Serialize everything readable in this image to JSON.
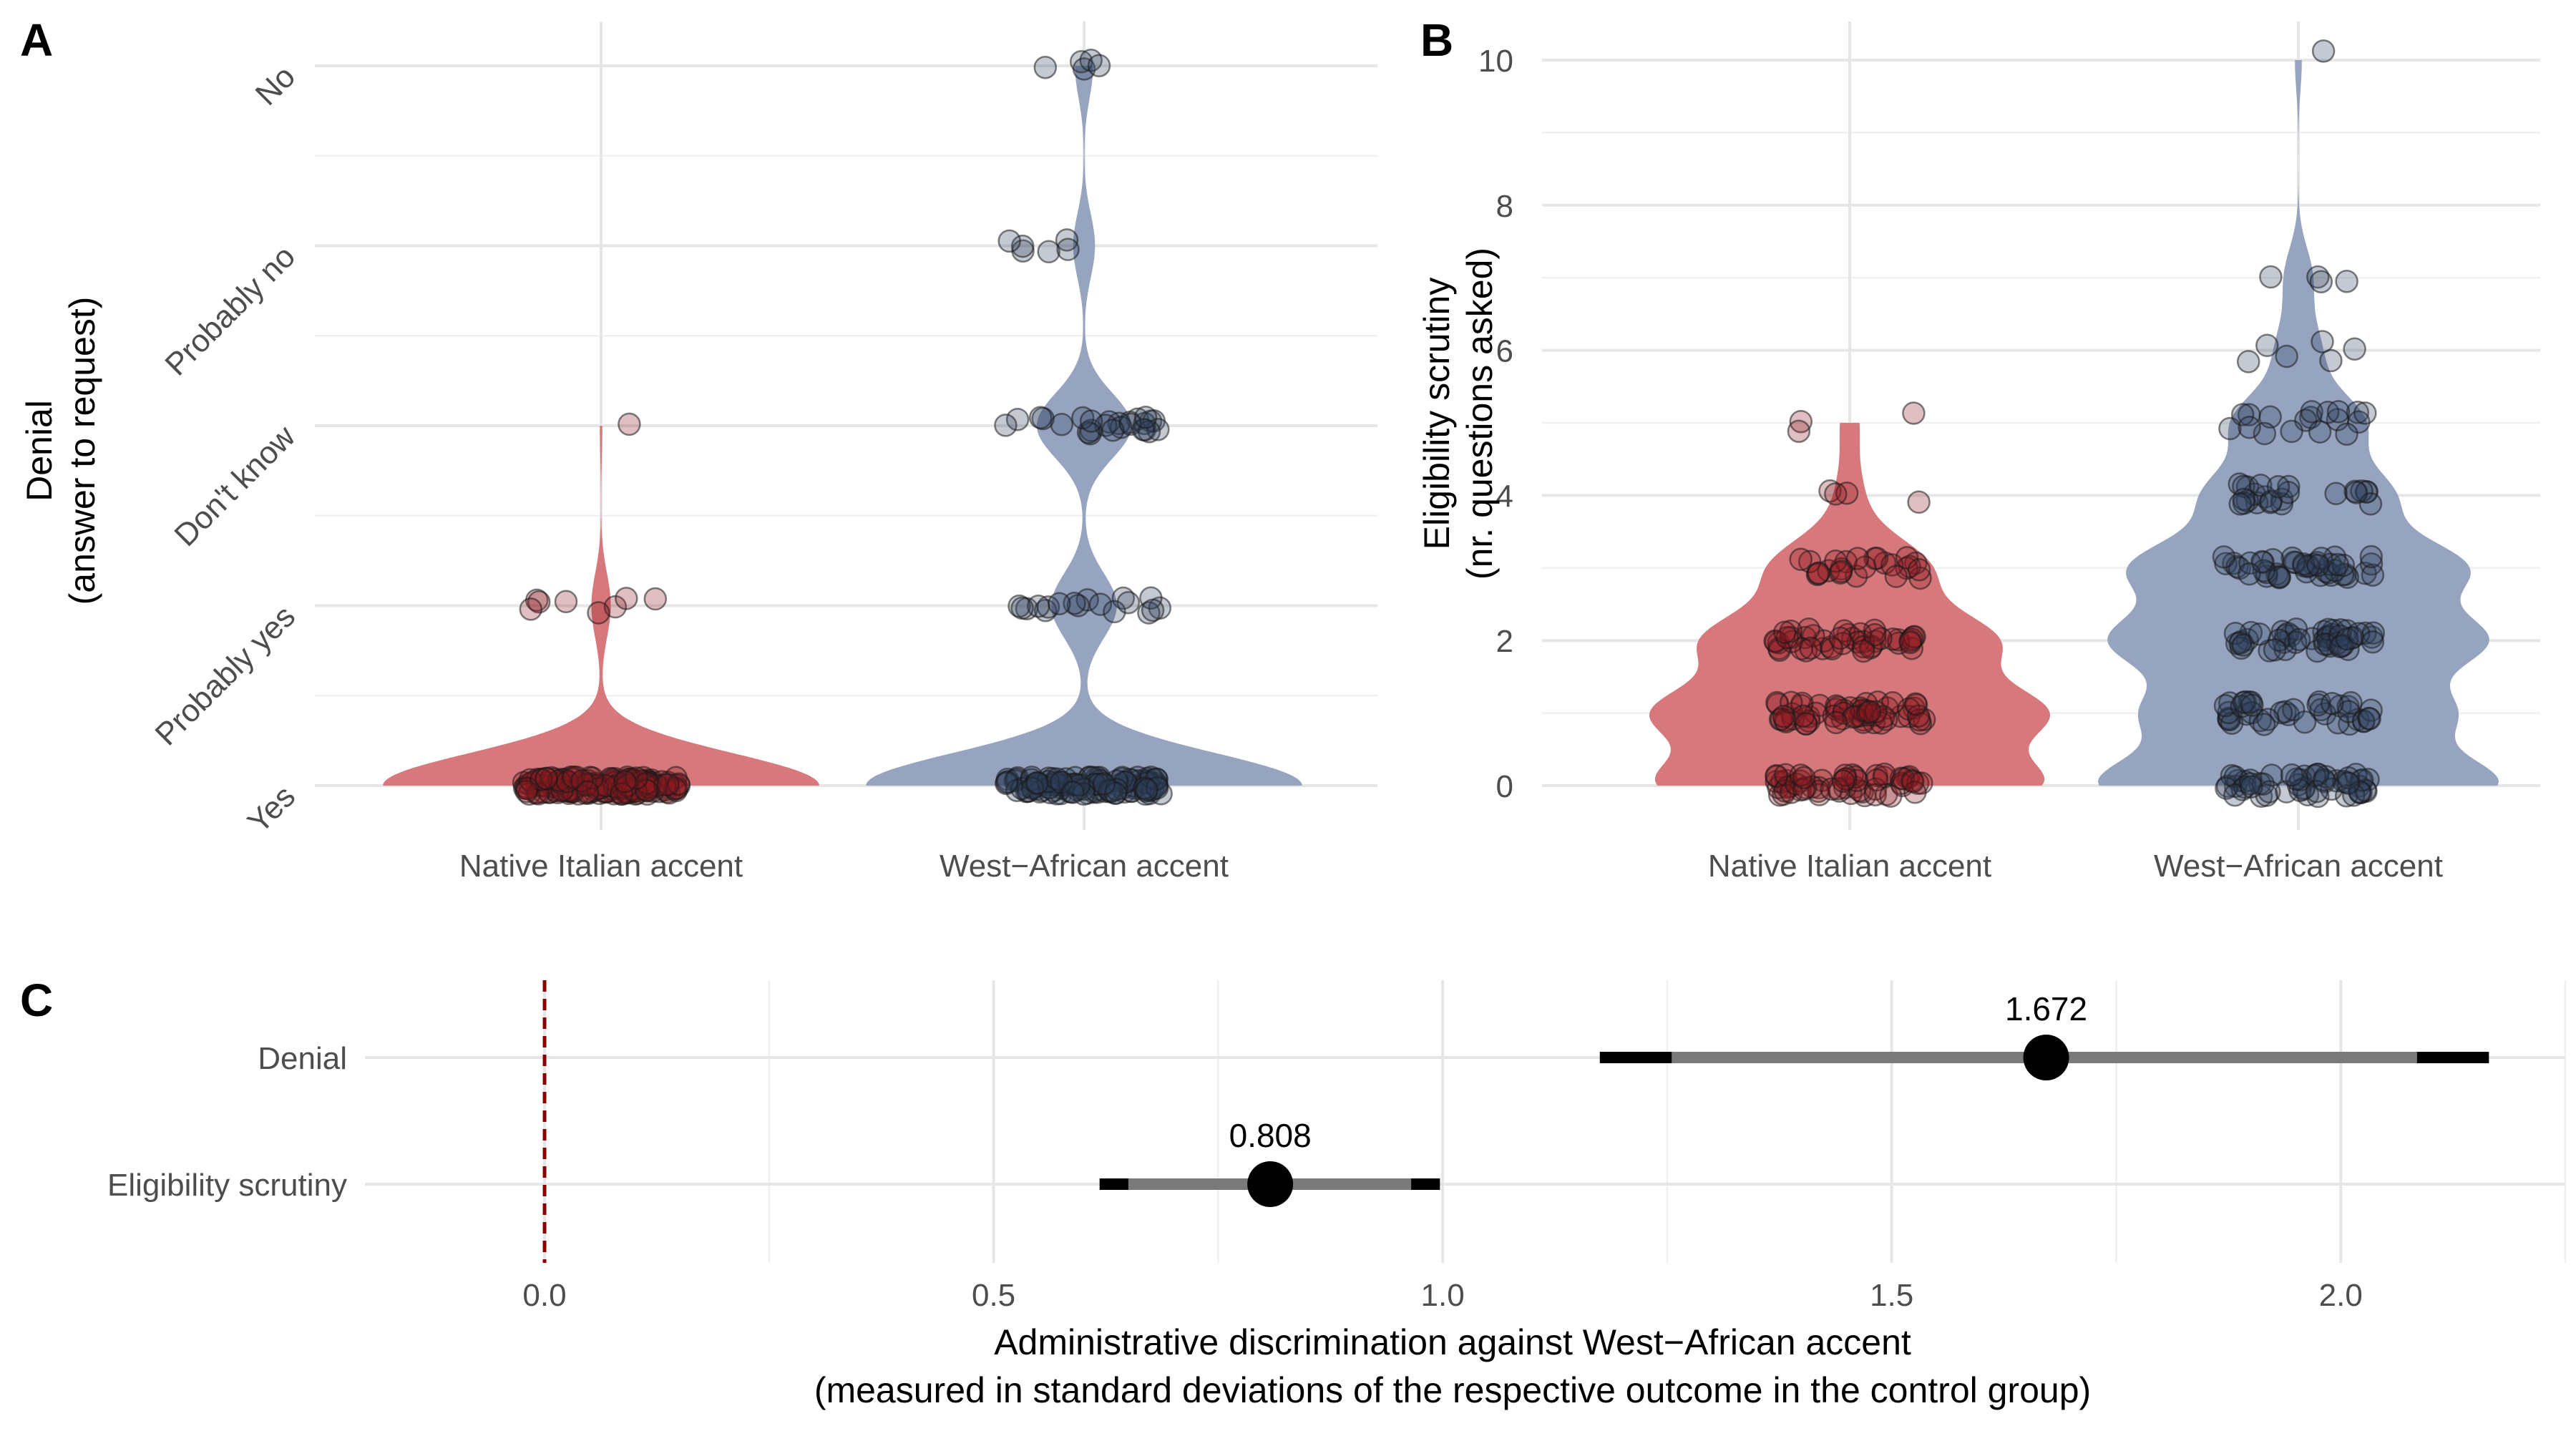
{
  "panels": {
    "a_letter": "A",
    "b_letter": "B",
    "c_letter": "C"
  },
  "colors": {
    "native_fill": "#d7787c",
    "native_point": "#8b1a22",
    "west_fill": "#96a4c0",
    "west_point": "#2f3f5e",
    "reference_line": "#8b0000",
    "ci_inner": "#7a7a7a",
    "ci_outer": "#000000"
  },
  "chart_data": [
    {
      "panel": "A",
      "type": "violin",
      "ylabel_line1": "Denial",
      "ylabel_line2": "(answer to request)",
      "categories": [
        "Native Italian accent",
        "West−African accent"
      ],
      "y_levels": [
        "Yes",
        "Probably yes",
        "Don't know",
        "Probably no",
        "No"
      ],
      "ylim": [
        0,
        4
      ],
      "series": [
        {
          "name": "Native Italian accent",
          "counts": {
            "0": 180,
            "1": 8,
            "2": 1,
            "3": 0,
            "4": 0
          }
        },
        {
          "name": "West−African accent",
          "counts": {
            "0": 120,
            "1": 18,
            "2": 26,
            "3": 6,
            "4": 5
          }
        }
      ],
      "grid": true
    },
    {
      "panel": "B",
      "type": "violin",
      "ylabel_line1": "Eligibility scrutiny",
      "ylabel_line2": "(nr. questions asked)",
      "categories": [
        "Native Italian accent",
        "West−African accent"
      ],
      "yticks": [
        "0",
        "2",
        "4",
        "6",
        "8",
        "10"
      ],
      "ylim": [
        0,
        10
      ],
      "series": [
        {
          "name": "Native Italian accent",
          "counts": {
            "0": 60,
            "1": 60,
            "2": 45,
            "3": 25,
            "4": 4,
            "5": 3
          }
        },
        {
          "name": "West−African accent",
          "counts": {
            "0": 55,
            "1": 40,
            "2": 50,
            "3": 45,
            "4": 25,
            "5": 18,
            "6": 6,
            "7": 4,
            "10": 1
          }
        }
      ],
      "grid": true
    },
    {
      "panel": "C",
      "type": "coefficient",
      "xlabel_line1": "Administrative discrimination against West−African accent",
      "xlabel_line2": "(measured in standard deviations of the respective outcome in the control group)",
      "xticks": [
        "0.0",
        "0.5",
        "1.0",
        "1.5",
        "2.0"
      ],
      "xlim": [
        -0.2,
        2.25
      ],
      "reference_x": 0,
      "estimates": [
        {
          "label": "Denial",
          "value": 1.672,
          "value_label": "1.672",
          "ci90": [
            1.255,
            2.085
          ],
          "ci95": [
            1.175,
            2.165
          ]
        },
        {
          "label": "Eligibility scrutiny",
          "value": 0.808,
          "value_label": "0.808",
          "ci90": [
            0.65,
            0.965
          ],
          "ci95": [
            0.618,
            0.997
          ]
        }
      ],
      "grid": true
    }
  ]
}
